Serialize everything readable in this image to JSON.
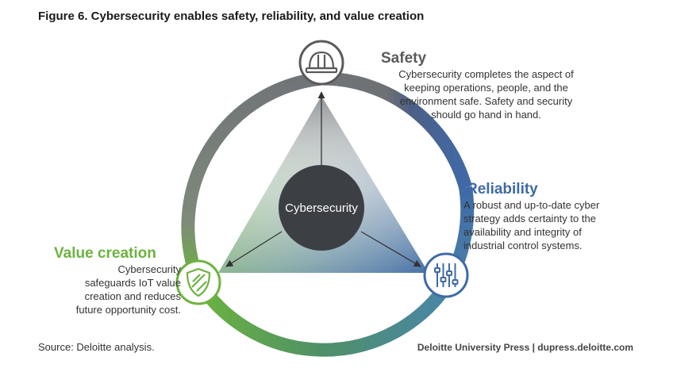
{
  "title": "Figure 6. Cybersecurity enables safety, reliability, and value creation",
  "center": {
    "label": "Cybersecurity"
  },
  "nodes": {
    "safety": {
      "label": "Safety",
      "lines": [
        "Cybersecurity completes the aspect of",
        "keeping operations, people, and the",
        "environment safe. Safety and security",
        "should go hand in hand."
      ],
      "icon": "hard-hat-icon",
      "color": "#5a5a5a"
    },
    "reliability": {
      "label": "Reliability",
      "lines": [
        "A robust and up-to-date cyber",
        "strategy adds certainty to the",
        "availability and integrity of",
        "industrial control systems."
      ],
      "icon": "sliders-icon",
      "color": "#3f6aa6"
    },
    "value_creation": {
      "label": "Value creation",
      "lines": [
        "Cybersecurity",
        "safeguards IoT value",
        "creation and reduces",
        "future opportunity cost."
      ],
      "icon": "shield-icon",
      "color": "#6cb33f"
    }
  },
  "footer": {
    "source": "Source: Deloitte analysis.",
    "credit": "Deloitte University Press  |  dupress.deloitte.com"
  }
}
